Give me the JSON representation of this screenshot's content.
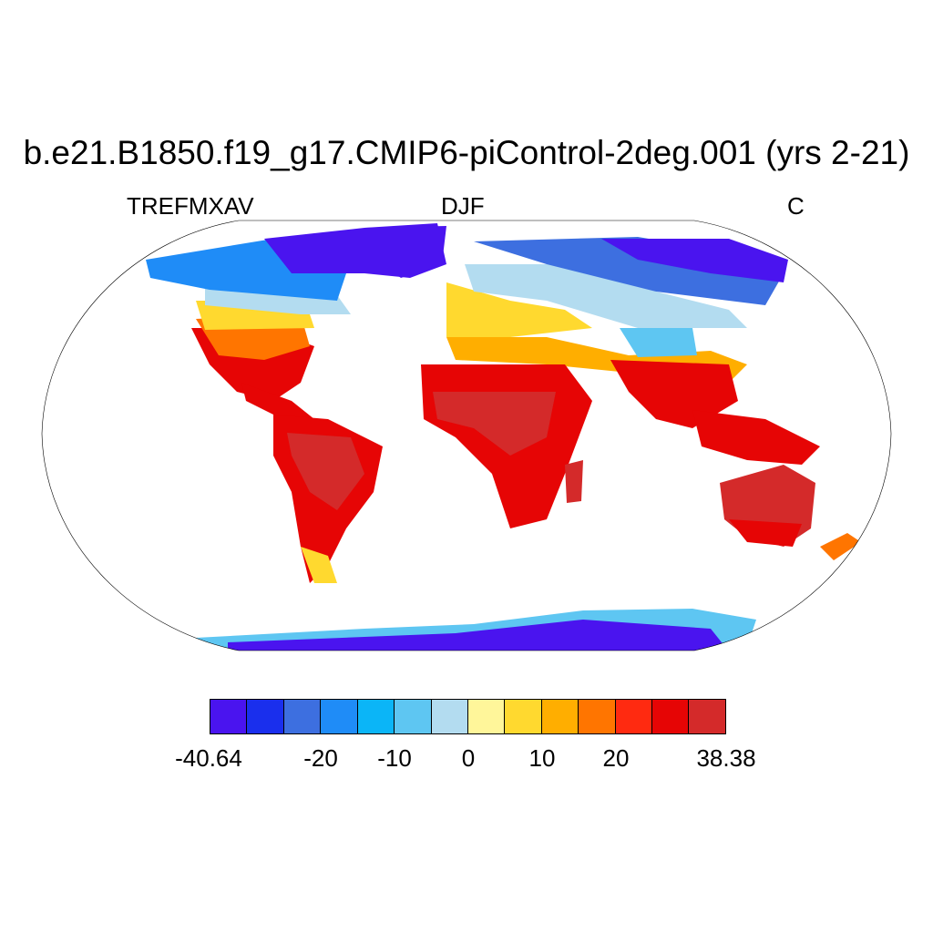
{
  "title": "b.e21.B1850.f19_g17.CMIP6-piControl-2deg.001 (yrs 2-21)",
  "left_label": "TREFMXAV",
  "center_label": "DJF",
  "right_label": "C",
  "map": {
    "projection": "Robinson",
    "field": "TREFMXAV",
    "season": "DJF",
    "units": "C"
  },
  "colorbar": {
    "min": "-40.64",
    "max": "38.38",
    "tick_labels": [
      "-40.64",
      "-20",
      "-10",
      "0",
      "10",
      "20",
      "38.38"
    ],
    "colors": [
      "#4a14ef",
      "#1a2fed",
      "#3d6fe0",
      "#1f8cf7",
      "#0bb5f7",
      "#5ec6f2",
      "#b3dcf0",
      "#fff69a",
      "#ffd92f",
      "#ffae00",
      "#ff7500",
      "#ff2a10",
      "#e60505",
      "#d42a2a"
    ]
  }
}
